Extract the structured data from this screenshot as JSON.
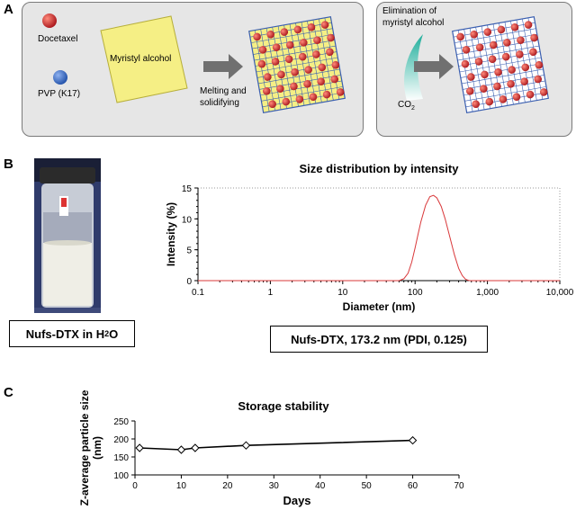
{
  "panels": {
    "a": "A",
    "b": "B",
    "c": "C"
  },
  "panel_a": {
    "docetaxel": "Docetaxel",
    "pvp": "PVP (K17)",
    "myristyl": "Myristyl alcohol",
    "melting_line1": "Melting and",
    "melting_line2": "solidifying",
    "elimination_line1": "Elimination of",
    "elimination_line2": "myristyl alcohol",
    "co2_base": "CO",
    "co2_sub": "2",
    "colors": {
      "docetaxel": "#b22222",
      "pvp": "#2d5fb4",
      "myristyl": "#f5ef85",
      "grid": "#3b5fb0",
      "arrow": "#707070",
      "co2": "#2bb5a3"
    }
  },
  "panel_b": {
    "vial_label": "Nufs-DTX in H",
    "vial_label_sub": "2",
    "vial_label_tail": "O",
    "result": "Nufs-DTX, 173.2 nm (PDI, 0.125)"
  },
  "chart_data": [
    {
      "type": "line",
      "title": "Size distribution by intensity",
      "xlabel": "Diameter (nm)",
      "ylabel": "Intensity (%)",
      "xscale": "log",
      "xlim": [
        0.1,
        10000
      ],
      "ylim": [
        0,
        15
      ],
      "x_ticks": [
        "0.1",
        "1",
        "10",
        "100",
        "1,000",
        "10,000"
      ],
      "y_ticks": [
        "0",
        "5",
        "10",
        "15"
      ],
      "series": [
        {
          "name": "Nufs-DTX",
          "color": "#d9383a",
          "x": [
            60,
            70,
            80,
            90,
            100,
            110,
            120,
            140,
            160,
            180,
            200,
            230,
            260,
            300,
            350,
            400,
            450,
            500,
            560
          ],
          "y": [
            0,
            0.3,
            1.2,
            3.0,
            5.3,
            7.5,
            9.5,
            12.2,
            13.6,
            13.8,
            13.4,
            12.0,
            10.0,
            7.2,
            4.2,
            2.0,
            0.8,
            0.2,
            0
          ]
        }
      ]
    },
    {
      "type": "line",
      "title": "Storage stability",
      "xlabel": "Days",
      "ylabel": "Z-average particle size (nm)",
      "xlim": [
        0,
        70
      ],
      "ylim": [
        100,
        250
      ],
      "x_ticks": [
        "0",
        "10",
        "20",
        "30",
        "40",
        "50",
        "60",
        "70"
      ],
      "y_ticks": [
        "100",
        "150",
        "200",
        "250"
      ],
      "series": [
        {
          "name": "Z-average",
          "color": "#000000",
          "x": [
            1,
            10,
            13,
            24,
            60
          ],
          "y": [
            175,
            170,
            175,
            182,
            196
          ]
        }
      ]
    }
  ]
}
